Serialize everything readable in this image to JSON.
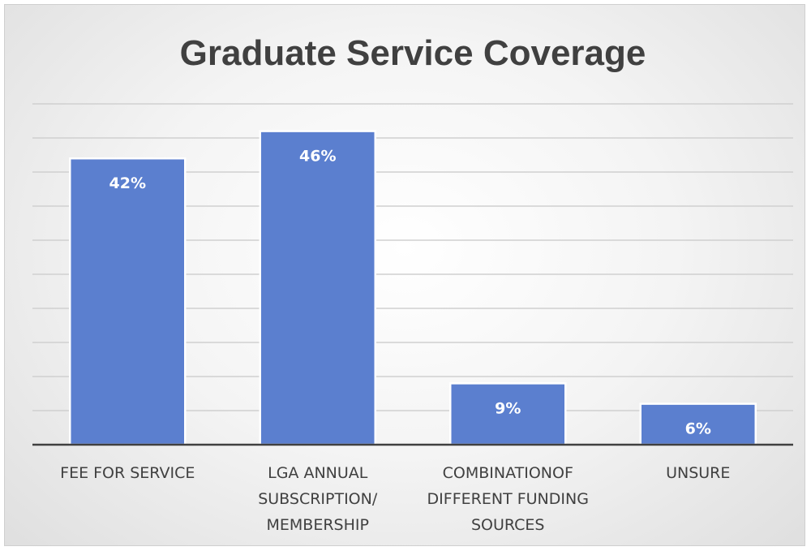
{
  "chart_data": {
    "type": "bar",
    "title": "Graduate Service Coverage",
    "categories": [
      [
        "FEE FOR SERVICE"
      ],
      [
        "LGA ANNUAL",
        "SUBSCRIPTION/",
        "MEMBERSHIP"
      ],
      [
        "COMBINATIONOF",
        "DIFFERENT FUNDING",
        "SOURCES"
      ],
      [
        "UNSURE"
      ]
    ],
    "values": [
      42,
      46,
      9,
      6
    ],
    "data_labels": [
      "42%",
      "46%",
      "9%",
      "6%"
    ],
    "ylim": [
      0,
      50
    ],
    "grid": true,
    "legend": "none",
    "colors": {
      "bar": "#5b7fcf",
      "title": "#404040"
    }
  }
}
